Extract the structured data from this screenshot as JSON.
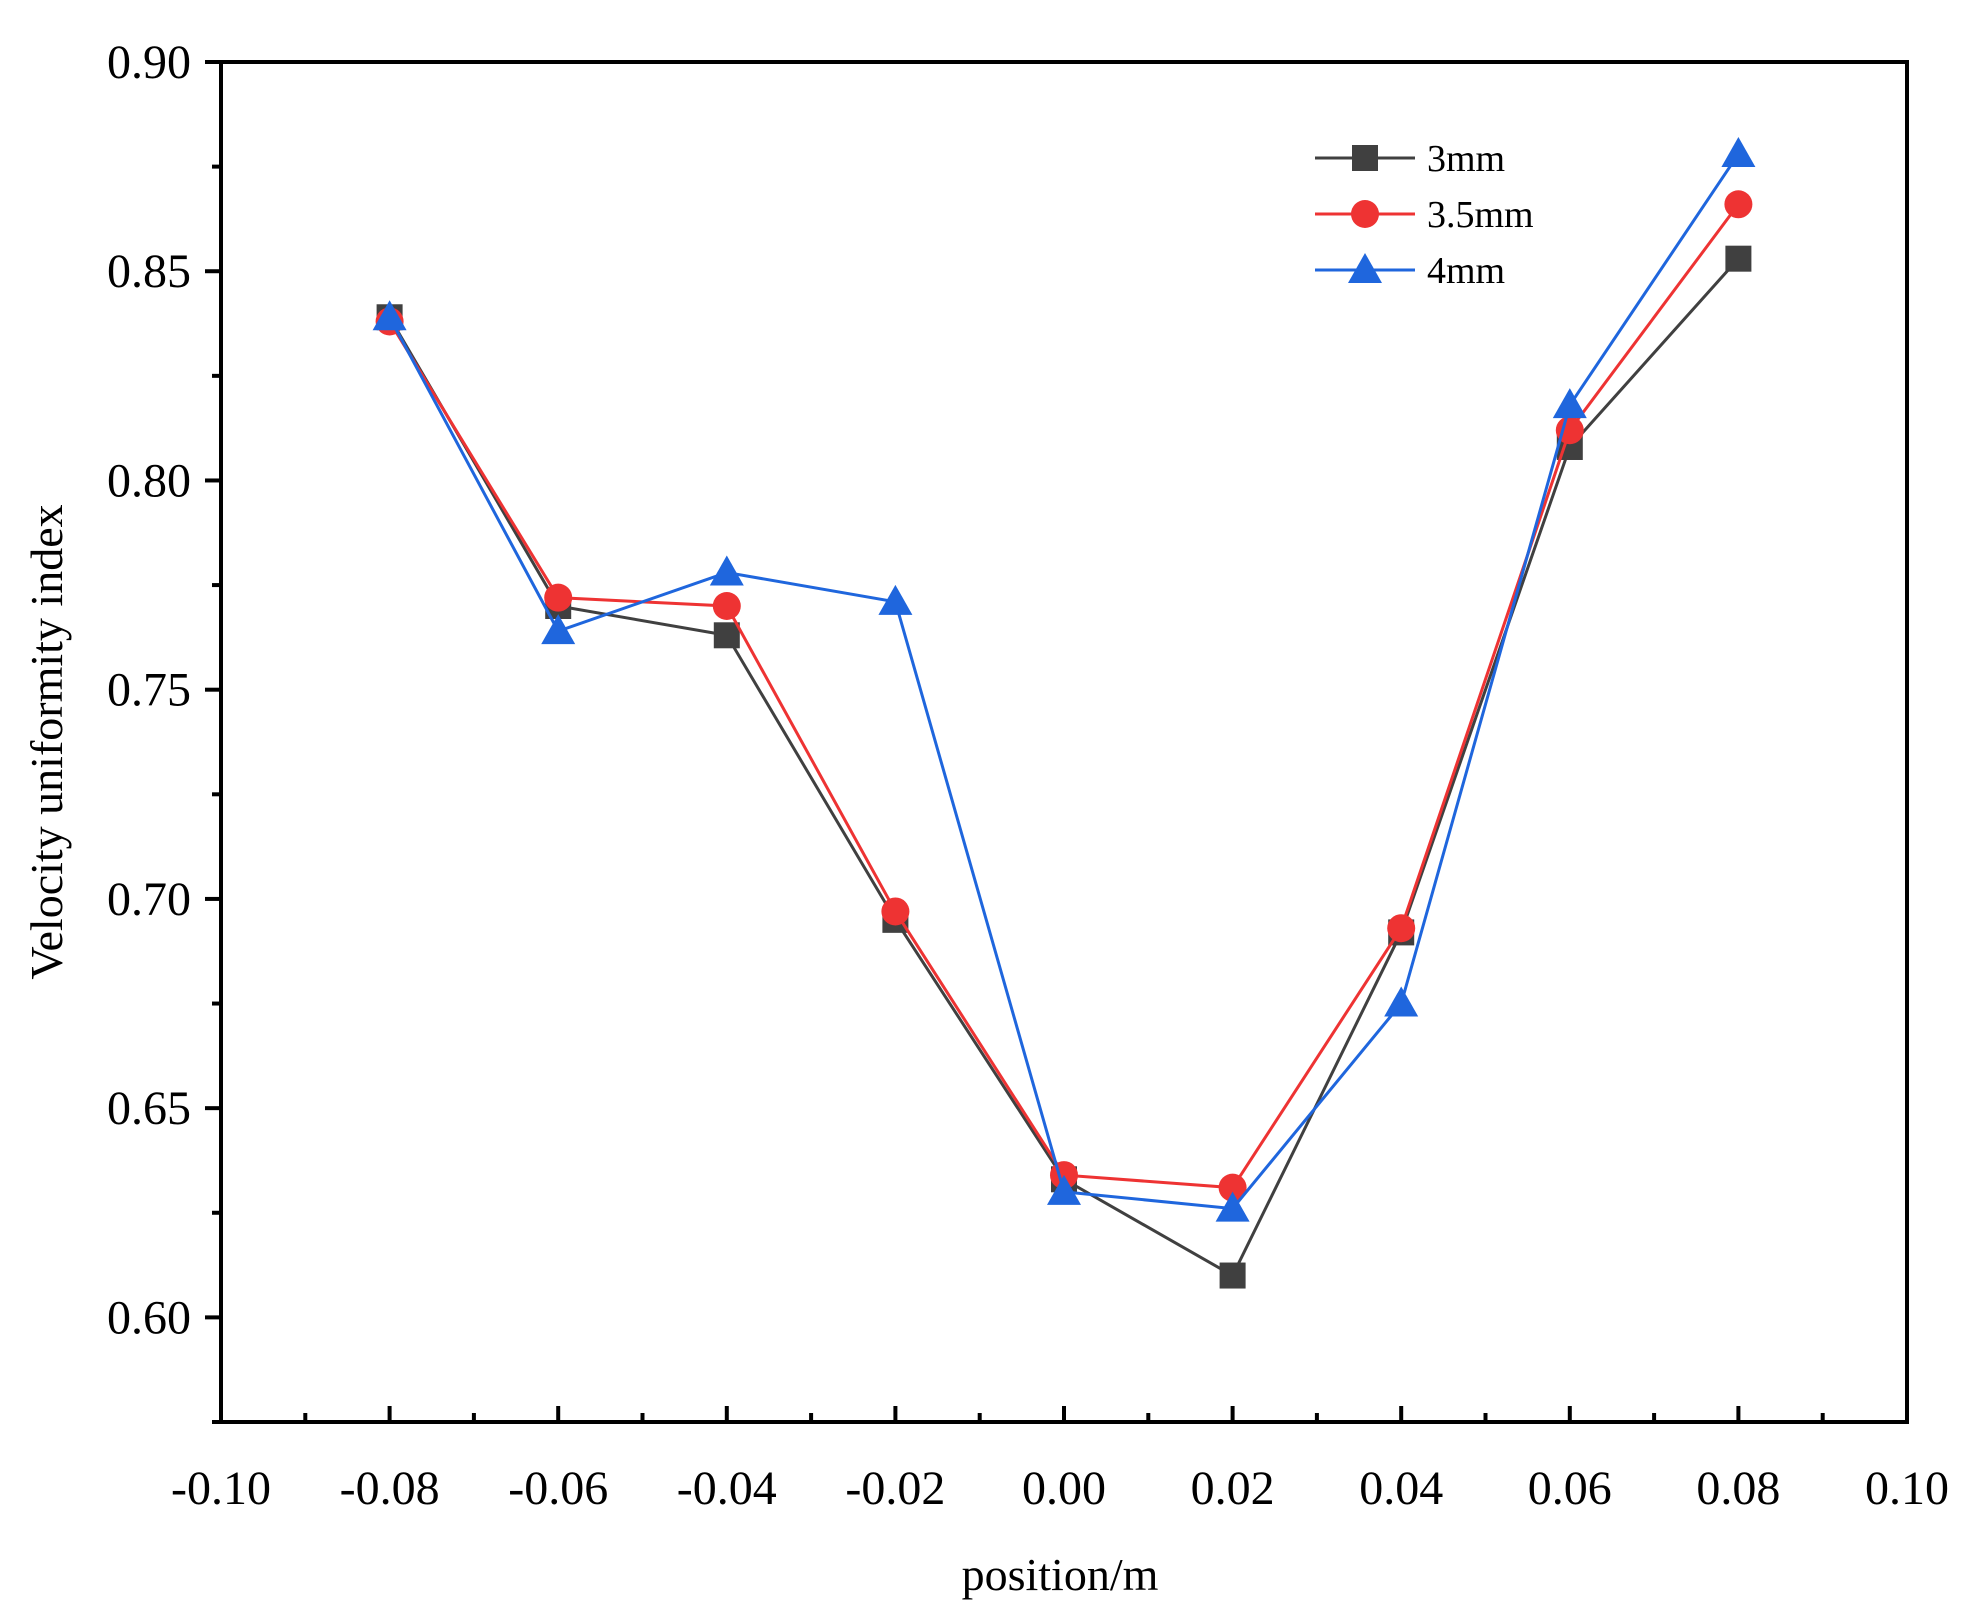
{
  "chart_data": {
    "type": "line",
    "title": "",
    "xlabel": "position/m",
    "ylabel": "Velocity uniformity index",
    "xlim": [
      -0.1,
      0.1
    ],
    "ylim": [
      0.575,
      0.9
    ],
    "xticks": [
      -0.1,
      -0.08,
      -0.06,
      -0.04,
      -0.02,
      0.0,
      0.02,
      0.04,
      0.06,
      0.08,
      0.1
    ],
    "xtick_labels": [
      "-0.10",
      "-0.08",
      "-0.06",
      "-0.04",
      "-0.02",
      "0.00",
      "0.02",
      "0.04",
      "0.06",
      "0.08",
      "0.10"
    ],
    "yticks": [
      0.6,
      0.65,
      0.7,
      0.75,
      0.8,
      0.85,
      0.9
    ],
    "ytick_labels": [
      "0.60",
      "0.65",
      "0.70",
      "0.75",
      "0.80",
      "0.85",
      "0.90"
    ],
    "grid": false,
    "legend_position": "top-right",
    "x": [
      -0.08,
      -0.06,
      -0.04,
      -0.02,
      0.0,
      0.02,
      0.04,
      0.06,
      0.08
    ],
    "series": [
      {
        "name": "3mm",
        "color": "#404040",
        "marker": "square",
        "values": [
          0.839,
          0.77,
          0.763,
          0.695,
          0.633,
          0.61,
          0.692,
          0.808,
          0.853
        ]
      },
      {
        "name": "3.5mm",
        "color": "#ee3333",
        "marker": "circle",
        "values": [
          0.838,
          0.772,
          0.77,
          0.697,
          0.634,
          0.631,
          0.693,
          0.812,
          0.866
        ]
      },
      {
        "name": "4mm",
        "color": "#1f66dd",
        "marker": "triangle",
        "values": [
          0.839,
          0.764,
          0.778,
          0.771,
          0.63,
          0.626,
          0.675,
          0.818,
          0.878
        ]
      }
    ]
  }
}
